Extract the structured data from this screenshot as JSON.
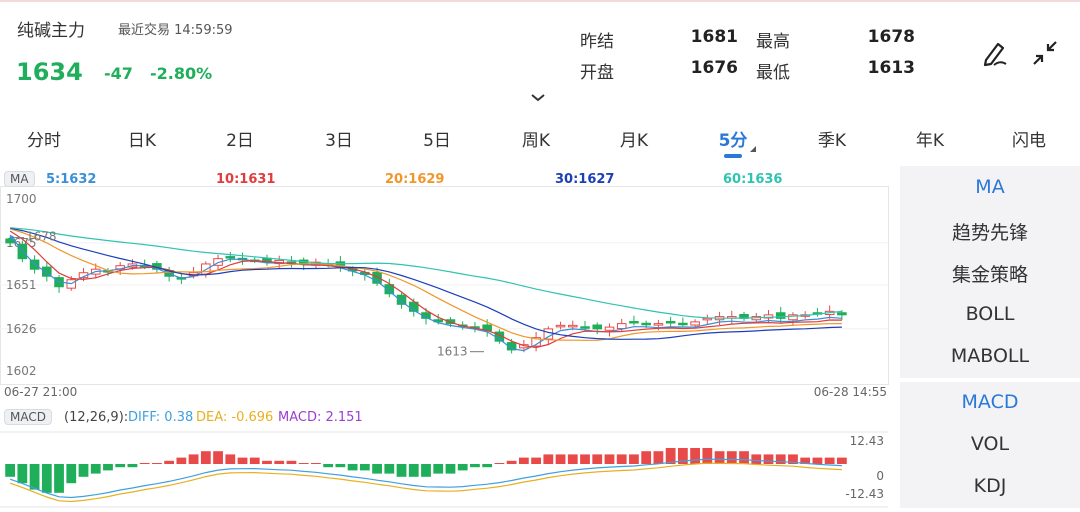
{
  "header": {
    "title": "纯碱主力",
    "trade_time": "最近交易  14:59:59",
    "price": "1634",
    "change": "-47",
    "change_pct": "-2.80%"
  },
  "quote": {
    "prev_settle_label": "昨结",
    "prev_settle": "1681",
    "high_label": "最高",
    "high": "1678",
    "open_label": "开盘",
    "open": "1676",
    "low_label": "最低",
    "low": "1613"
  },
  "tabs": [
    "分时",
    "日K",
    "2日",
    "3日",
    "5日",
    "周K",
    "月K",
    "5分",
    "季K",
    "年K",
    "闪电"
  ],
  "active_tab": "5分",
  "ma_legend": {
    "chip": "MA",
    "ma5": "5:1632",
    "ma10": "10:1631",
    "ma20": "20:1629",
    "ma30": "30:1627",
    "ma60": "60:1636"
  },
  "price_axis": [
    "1700",
    "1675",
    "1651",
    "1626",
    "1602"
  ],
  "annotations": {
    "high_mark": "1678",
    "low_mark": "1613"
  },
  "time_axis": {
    "start": "06-27 21:00",
    "end": "06-28 14:55"
  },
  "macd_legend": {
    "chip": "MACD",
    "params": "(12,26,9):",
    "diff": "DIFF: 0.38",
    "dea": "DEA: -0.696",
    "macd": "MACD: 2.151"
  },
  "macd_axis": [
    "12.43",
    "0",
    "-12.43"
  ],
  "side_menu": {
    "main_title": "MA",
    "main_items": [
      "趋势先锋",
      "集金策略",
      "BOLL",
      "MABOLL"
    ],
    "sub_title": "MACD",
    "sub_items": [
      "VOL",
      "KDJ"
    ]
  },
  "colors": {
    "up": "#e84a4a",
    "down": "#1fae5a",
    "accent": "#2979d9",
    "ma5": "#3a8fd6",
    "ma10": "#e03c3c",
    "ma20": "#f0962a",
    "ma30": "#1b3fb8",
    "ma60": "#2fc3b0",
    "macd_diff": "#3fa0e0",
    "macd_dea": "#e8b020"
  },
  "chart_data": {
    "type": "candlestick",
    "y_range": [
      1602,
      1700
    ],
    "closes": [
      1675,
      1666,
      1660,
      1656,
      1650,
      1654,
      1658,
      1660,
      1659,
      1662,
      1663,
      1662,
      1660,
      1656,
      1655,
      1658,
      1663,
      1666,
      1667,
      1666,
      1665,
      1664,
      1665,
      1664,
      1663,
      1664,
      1663,
      1661,
      1659,
      1657,
      1652,
      1646,
      1640,
      1636,
      1632,
      1630,
      1629,
      1628,
      1627,
      1625,
      1619,
      1614,
      1617,
      1621,
      1626,
      1628,
      1628,
      1627,
      1626,
      1627,
      1629,
      1630,
      1629,
      1629,
      1630,
      1629,
      1630,
      1632,
      1633,
      1633,
      1632,
      1633,
      1634,
      1632,
      1634,
      1634,
      1635,
      1636,
      1634
    ],
    "macd": [
      -4,
      -6,
      -8,
      -9,
      -9,
      -6,
      -4,
      -3,
      -2,
      -1,
      -1,
      0,
      0,
      1,
      2,
      3,
      4,
      4,
      3,
      2,
      2,
      1,
      1,
      1,
      0,
      0,
      -1,
      -1,
      -2,
      -2,
      -3,
      -3,
      -4,
      -4,
      -4,
      -3,
      -3,
      -2,
      -1,
      -1,
      0,
      1,
      2,
      2,
      3,
      3,
      3,
      3,
      3,
      3,
      3,
      3,
      4,
      4,
      5,
      5,
      5,
      5,
      4,
      4,
      4,
      3,
      3,
      3,
      3,
      2,
      2,
      2,
      2
    ],
    "ma": {
      "ma5": {
        "start": 1679,
        "end": 1632
      },
      "ma10": {
        "start": 1680,
        "end": 1631
      },
      "ma20": {
        "start": 1682,
        "end": 1629
      },
      "ma30": {
        "start": 1690,
        "end": 1627
      },
      "ma60": {
        "start": 1685,
        "end": 1636
      }
    }
  }
}
